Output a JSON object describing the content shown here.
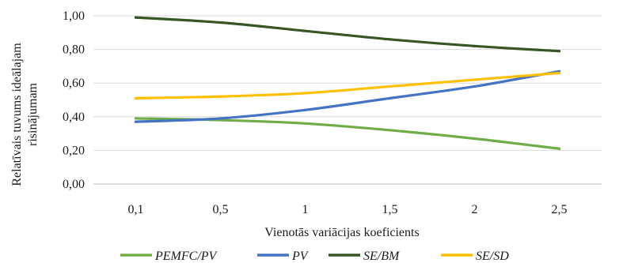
{
  "chart_data": {
    "type": "line",
    "title": "",
    "xlabel": "Vienotās variācijas koeficients",
    "ylabel": [
      "Relatīvais tuvums ideālajam",
      "risinājumam"
    ],
    "categories": [
      "0,1",
      "0,5",
      "1",
      "1,5",
      "2",
      "2,5"
    ],
    "y_ticks": [
      "0,00",
      "0,20",
      "0,40",
      "0,60",
      "0,80",
      "1,00"
    ],
    "ylim": [
      0,
      1
    ],
    "grid": true,
    "legend_position": "bottom",
    "series": [
      {
        "name": "PEMFC/PV",
        "color": "#70ad47",
        "values": [
          0.39,
          0.38,
          0.36,
          0.32,
          0.27,
          0.21
        ]
      },
      {
        "name": "PV",
        "color": "#4472c4",
        "values": [
          0.37,
          0.39,
          0.44,
          0.51,
          0.58,
          0.67
        ]
      },
      {
        "name": "SE/BM",
        "color": "#375623",
        "values": [
          0.99,
          0.96,
          0.91,
          0.86,
          0.82,
          0.79
        ]
      },
      {
        "name": "SE/SD",
        "color": "#ffc000",
        "values": [
          0.51,
          0.52,
          0.54,
          0.58,
          0.62,
          0.66
        ]
      }
    ]
  }
}
